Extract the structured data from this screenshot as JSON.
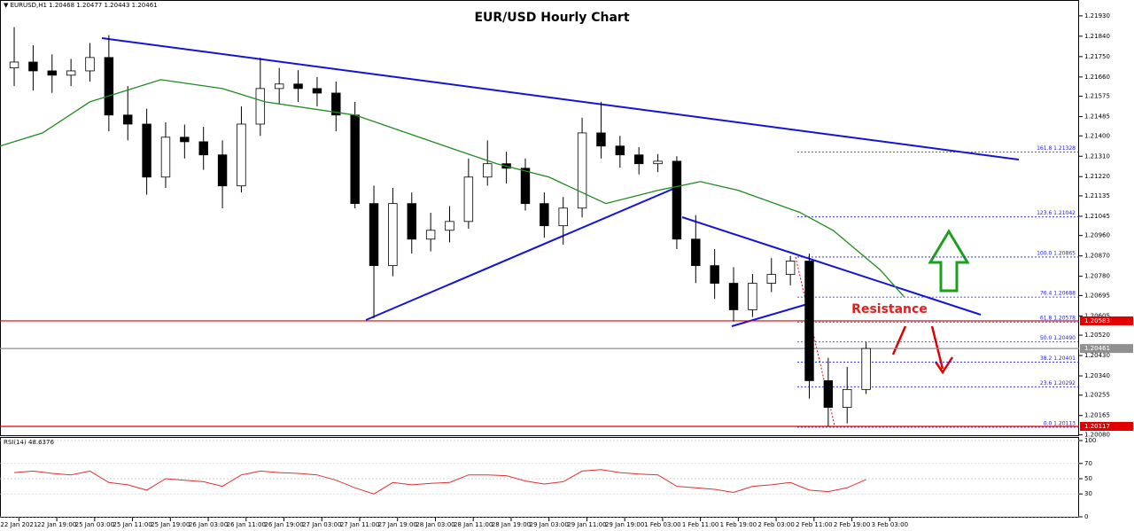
{
  "chart_data": [
    {
      "type": "candlestick",
      "title": "EUR/USD Hourly Chart",
      "subtitle": "▼ EURUSD,H1  1.20468 1.20477 1.20443 1.20461",
      "annotation": "Resistance",
      "x": [
        0,
        4,
        8,
        12,
        16,
        20,
        24,
        28,
        32,
        36,
        40,
        44,
        48,
        52,
        56,
        60,
        64,
        68,
        72,
        76,
        80,
        84,
        88,
        92,
        96,
        100,
        104,
        108,
        112,
        116,
        120,
        124,
        128,
        132,
        136,
        140,
        144,
        148,
        152,
        156,
        160,
        164,
        168,
        172,
        176,
        180
      ],
      "open": [
        1.217,
        1.21726,
        1.21687,
        1.21668,
        1.21687,
        1.21746,
        1.21492,
        1.21452,
        1.21218,
        1.21394,
        1.21374,
        1.21316,
        1.21179,
        1.21452,
        1.21609,
        1.21629,
        1.21609,
        1.21589,
        1.21492,
        1.21101,
        1.20827,
        1.21101,
        1.20944,
        1.20983,
        1.21022,
        1.21218,
        1.21277,
        1.21257,
        1.21101,
        1.21003,
        1.21081,
        1.21413,
        1.21355,
        1.21316,
        1.21277,
        1.21288,
        1.20944,
        1.20827,
        1.20749,
        1.20632,
        1.20749,
        1.20788,
        1.20847,
        1.20319,
        1.20201,
        1.2028
      ],
      "high": [
        1.2188,
        1.218,
        1.2176,
        1.2174,
        1.2181,
        1.21845,
        1.2162,
        1.2152,
        1.2146,
        1.2145,
        1.2144,
        1.2138,
        1.2153,
        1.21745,
        1.217,
        1.2169,
        1.2166,
        1.2164,
        1.2155,
        1.2118,
        1.2117,
        1.2115,
        1.2106,
        1.2109,
        1.213,
        1.2138,
        1.2133,
        1.213,
        1.2115,
        1.2113,
        1.2148,
        1.2155,
        1.214,
        1.2135,
        1.2132,
        1.2131,
        1.2105,
        1.209,
        1.2082,
        1.2079,
        1.2086,
        1.2087,
        1.2088,
        1.2042,
        1.2038,
        1.2049
      ],
      "low": [
        1.2162,
        1.216,
        1.2159,
        1.2162,
        1.2164,
        1.2142,
        1.2138,
        1.2114,
        1.2117,
        1.213,
        1.2125,
        1.2108,
        1.2115,
        1.214,
        1.2154,
        1.2155,
        1.2153,
        1.2142,
        1.2108,
        1.20595,
        1.2078,
        1.2088,
        1.2089,
        1.2093,
        1.2099,
        1.2118,
        1.2119,
        1.2107,
        1.2095,
        1.2092,
        1.2104,
        1.213,
        1.2126,
        1.2123,
        1.2124,
        1.209,
        1.2075,
        1.2068,
        1.2058,
        1.206,
        1.2071,
        1.2074,
        1.2024,
        1.20117,
        1.2013,
        1.2026
      ],
      "close": [
        1.21726,
        1.21687,
        1.21668,
        1.21687,
        1.21746,
        1.21492,
        1.21452,
        1.21218,
        1.21394,
        1.21374,
        1.21316,
        1.21179,
        1.21452,
        1.21609,
        1.21629,
        1.21609,
        1.21589,
        1.21492,
        1.21101,
        1.20827,
        1.21101,
        1.20944,
        1.20983,
        1.21022,
        1.21218,
        1.21277,
        1.21257,
        1.21101,
        1.21003,
        1.21081,
        1.21413,
        1.21355,
        1.21316,
        1.21277,
        1.21288,
        1.20944,
        1.20827,
        1.20749,
        1.20632,
        1.20749,
        1.20788,
        1.20847,
        1.20319,
        1.20201,
        1.2028,
        1.20461
      ],
      "up_color": "#ffffff",
      "down_color": "#000000",
      "overlay": {
        "x": [
          -3,
          6,
          16,
          31,
          44,
          53,
          72,
          91,
          102,
          113,
          125,
          136,
          145,
          153,
          166,
          173,
          183,
          188
        ],
        "values": [
          1.21355,
          1.21413,
          1.2155,
          1.21648,
          1.21609,
          1.2155,
          1.21492,
          1.21355,
          1.21277,
          1.21218,
          1.21101,
          1.21159,
          1.21198,
          1.21159,
          1.21062,
          1.20983,
          1.20808,
          1.2069
        ],
        "color": "#1e8c1e"
      },
      "xlim": [
        -3,
        225
      ],
      "ylim": [
        1.2007,
        1.22
      ],
      "yticks": [
        {
          "value": 1.2193,
          "label": "1.21930"
        },
        {
          "value": 1.2184,
          "label": "1.21840"
        },
        {
          "value": 1.2175,
          "label": "1.21750"
        },
        {
          "value": 1.2166,
          "label": "1.21660"
        },
        {
          "value": 1.21575,
          "label": "1.21575"
        },
        {
          "value": 1.21485,
          "label": "1.21485"
        },
        {
          "value": 1.214,
          "label": "1.21400"
        },
        {
          "value": 1.2131,
          "label": "1.21310"
        },
        {
          "value": 1.2122,
          "label": "1.21220"
        },
        {
          "value": 1.21135,
          "label": "1.21135"
        },
        {
          "value": 1.21045,
          "label": "1.21045"
        },
        {
          "value": 1.2096,
          "label": "1.20960"
        },
        {
          "value": 1.2087,
          "label": "1.20870"
        },
        {
          "value": 1.2078,
          "label": "1.20780"
        },
        {
          "value": 1.20695,
          "label": "1.20695"
        },
        {
          "value": 1.20605,
          "label": "1.20605"
        },
        {
          "value": 1.2052,
          "label": "1.20520"
        },
        {
          "value": 1.2043,
          "label": "1.20430"
        },
        {
          "value": 1.2034,
          "label": "1.20340"
        },
        {
          "value": 1.20255,
          "label": "1.20255"
        },
        {
          "value": 1.20165,
          "label": "1.20165"
        },
        {
          "value": 1.2008,
          "label": "1.20080"
        }
      ],
      "price_lines": [
        {
          "value": 1.20583,
          "color": "#e00000"
        },
        {
          "value": 1.20461,
          "color": "#909090"
        },
        {
          "value": 1.20117,
          "color": "#e00000"
        }
      ],
      "fib_levels": [
        {
          "value": 1.21328,
          "label": "161.8 1.21328"
        },
        {
          "value": 1.21042,
          "label": "123.6 1.21042"
        },
        {
          "value": 1.20865,
          "label": "100.0 1.20865"
        },
        {
          "value": 1.20688,
          "label": "76.4 1.20688"
        },
        {
          "value": 1.20578,
          "label": "61.8 1.20578"
        },
        {
          "value": 1.2049,
          "label": "50.0 1.20490"
        },
        {
          "value": 1.20401,
          "label": "38.2 1.20401"
        },
        {
          "value": 1.20292,
          "label": "23.6 1.20292"
        },
        {
          "value": 1.20113,
          "label": "0.0 1.20113"
        }
      ],
      "fib_color": "#1a1aff"
    },
    {
      "type": "line",
      "title": "RSI(14) 48.6376",
      "x": [
        0,
        4,
        8,
        12,
        16,
        20,
        24,
        28,
        32,
        36,
        40,
        44,
        48,
        52,
        56,
        60,
        64,
        68,
        72,
        76,
        80,
        84,
        88,
        92,
        96,
        100,
        104,
        108,
        112,
        116,
        120,
        124,
        128,
        132,
        136,
        140,
        144,
        148,
        152,
        156,
        160,
        164,
        168,
        172,
        176,
        180
      ],
      "values": [
        58,
        60,
        57,
        55,
        60,
        45,
        42,
        35,
        50,
        48,
        46,
        40,
        55,
        60,
        58,
        57,
        55,
        48,
        38,
        30,
        45,
        42,
        44,
        45,
        55,
        55,
        54,
        47,
        43,
        46,
        60,
        62,
        58,
        56,
        55,
        40,
        38,
        36,
        32,
        40,
        42,
        45,
        35,
        33,
        38,
        49
      ],
      "color": "#e03030",
      "xlim": [
        -3,
        225
      ],
      "ylim": [
        0,
        100
      ],
      "yticks": [
        100,
        70,
        50,
        30,
        0
      ],
      "xticks": [
        {
          "value": 1,
          "label": "22 Jan 2021"
        },
        {
          "value": 9,
          "label": "22 Jan 19:00"
        },
        {
          "value": 17,
          "label": "25 Jan 03:00"
        },
        {
          "value": 25,
          "label": "25 Jan 11:00"
        },
        {
          "value": 33,
          "label": "25 Jan 19:00"
        },
        {
          "value": 41,
          "label": "26 Jan 03:00"
        },
        {
          "value": 49,
          "label": "26 Jan 11:00"
        },
        {
          "value": 57,
          "label": "26 Jan 19:00"
        },
        {
          "value": 65,
          "label": "27 Jan 03:00"
        },
        {
          "value": 73,
          "label": "27 Jan 11:00"
        },
        {
          "value": 81,
          "label": "27 Jan 19:00"
        },
        {
          "value": 89,
          "label": "28 Jan 03:00"
        },
        {
          "value": 97,
          "label": "28 Jan 11:00"
        },
        {
          "value": 105,
          "label": "28 Jan 19:00"
        },
        {
          "value": 113,
          "label": "29 Jan 03:00"
        },
        {
          "value": 121,
          "label": "29 Jan 11:00"
        },
        {
          "value": 129,
          "label": "29 Jan 19:00"
        },
        {
          "value": 137,
          "label": "1 Feb 03:00"
        },
        {
          "value": 145,
          "label": "1 Feb 11:00"
        },
        {
          "value": 153,
          "label": "1 Feb 19:00"
        },
        {
          "value": 161,
          "label": "2 Feb 03:00"
        },
        {
          "value": 169,
          "label": "2 Feb 11:00"
        },
        {
          "value": 177,
          "label": "2 Feb 19:00"
        },
        {
          "value": 185,
          "label": "3 Feb 03:00"
        }
      ]
    }
  ]
}
